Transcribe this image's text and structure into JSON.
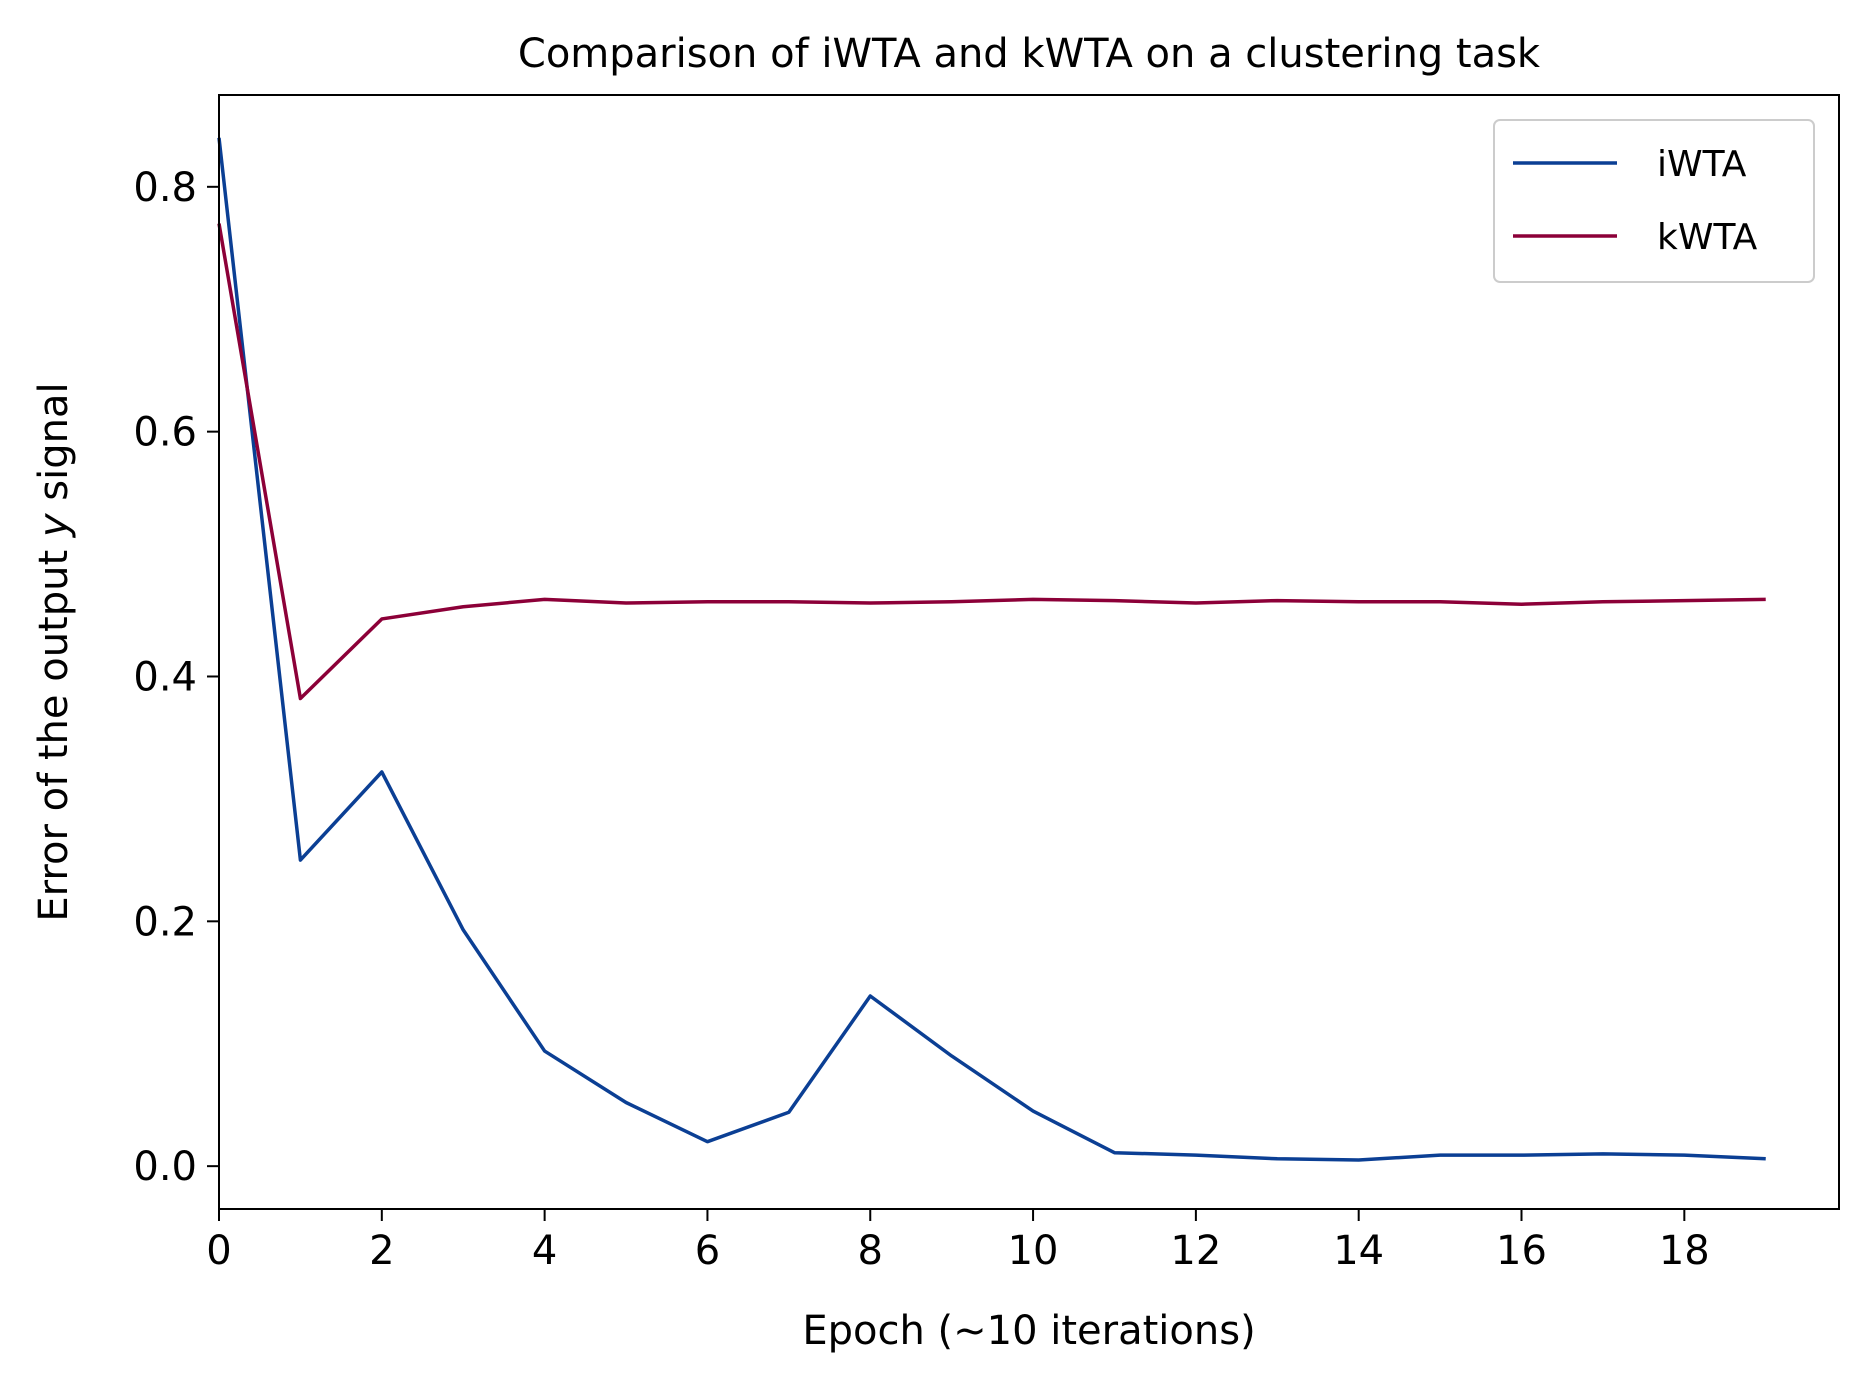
{
  "chart_data": {
    "type": "line",
    "title": "Comparison of iWTA and kWTA on a clustering task",
    "xlabel": "Epoch (~10 iterations)",
    "ylabel_parts": [
      "Error of the output ",
      "y",
      " signal"
    ],
    "xlim": [
      0,
      19.9
    ],
    "ylim": [
      -0.035,
      0.875
    ],
    "xticks": [
      0,
      2,
      4,
      6,
      8,
      10,
      12,
      14,
      16,
      18
    ],
    "yticks": [
      0.0,
      0.2,
      0.4,
      0.6,
      0.8
    ],
    "ytick_labels": [
      "0.0",
      "0.2",
      "0.4",
      "0.6",
      "0.8"
    ],
    "grid": false,
    "legend_position": "top-right",
    "x": [
      0,
      1,
      2,
      3,
      4,
      5,
      6,
      7,
      8,
      9,
      10,
      11,
      12,
      13,
      14,
      15,
      16,
      17,
      18,
      19
    ],
    "series": [
      {
        "name": "iWTA",
        "color": "#0b3f94",
        "values": [
          0.84,
          0.25,
          0.322,
          0.193,
          0.094,
          0.052,
          0.02,
          0.044,
          0.139,
          0.09,
          0.045,
          0.011,
          0.009,
          0.006,
          0.005,
          0.009,
          0.009,
          0.01,
          0.009,
          0.006
        ]
      },
      {
        "name": "kWTA",
        "color": "#8c0038",
        "values": [
          0.77,
          0.382,
          0.447,
          0.457,
          0.463,
          0.46,
          0.461,
          0.461,
          0.46,
          0.461,
          0.463,
          0.462,
          0.46,
          0.462,
          0.461,
          0.461,
          0.459,
          0.461,
          0.462,
          0.463
        ]
      }
    ]
  }
}
